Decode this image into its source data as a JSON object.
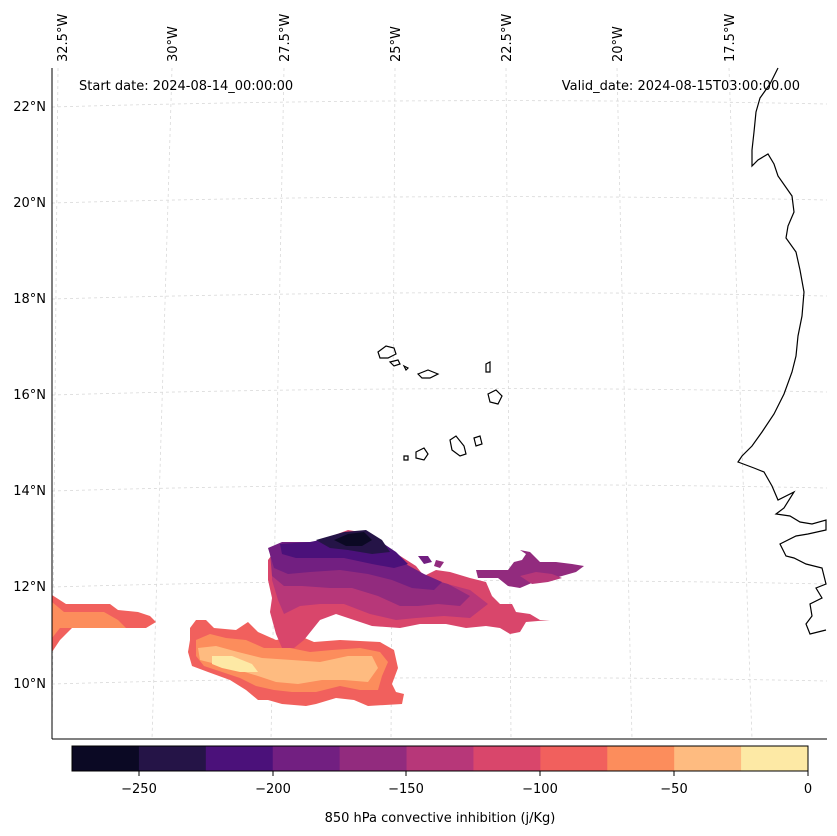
{
  "header": {
    "start_date": "Start date: 2024-08-14_00:00:00",
    "valid_date": "Valid_date: 2024-08-15T03:00:00.00"
  },
  "longitude_labels": [
    "32.5°W",
    "30°W",
    "27.5°W",
    "25°W",
    "22.5°W",
    "20°W",
    "17.5°W"
  ],
  "latitude_labels": [
    "22°N",
    "20°N",
    "18°N",
    "16°N",
    "14°N",
    "12°N",
    "10°N"
  ],
  "colorbar": {
    "label": "850 hPa convective inhibition (j/Kg)",
    "ticks": [
      "−250",
      "−200",
      "−150",
      "−100",
      "−50",
      "0"
    ],
    "colors": [
      "#0b0924",
      "#251447",
      "#4b117a",
      "#721f81",
      "#922b7e",
      "#b73779",
      "#d9466b",
      "#f1605d",
      "#fc8d5c",
      "#febb80",
      "#fde9a5"
    ]
  },
  "legend_colors": {
    "coast": "#000000",
    "grid": "#cccccc"
  }
}
